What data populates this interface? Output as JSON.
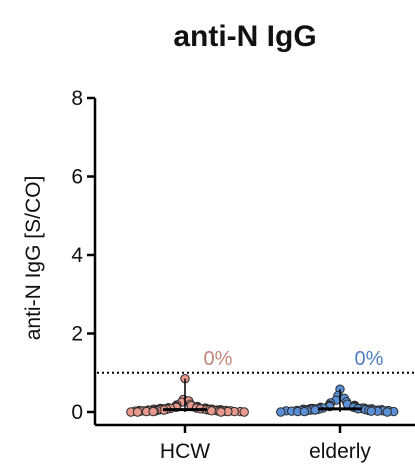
{
  "chart_data": {
    "type": "scatter",
    "title": "anti-N IgG",
    "xlabel": "",
    "ylabel": "anti-N IgG [S/CO]",
    "ylim": [
      0,
      8
    ],
    "yticks": [
      "0",
      "2",
      "4",
      "6",
      "8"
    ],
    "categories": [
      "HCW",
      "elderly"
    ],
    "threshold": 1,
    "grid": false,
    "colors": {
      "HCW": "#E8998D",
      "elderly": "#5B8FD6",
      "HCW_label": "#C58578",
      "elderly_label": "#4F7FC2"
    },
    "series": [
      {
        "name": "HCW",
        "positive_label": "0%",
        "values": [
          0.85,
          0.32,
          0.28,
          0.25,
          0.2,
          0.18,
          0.16,
          0.15,
          0.14,
          0.13,
          0.12,
          0.12,
          0.11,
          0.11,
          0.1,
          0.1,
          0.1,
          0.09,
          0.09,
          0.09,
          0.08,
          0.08,
          0.08,
          0.08,
          0.07,
          0.07,
          0.07,
          0.07,
          0.06,
          0.06,
          0.06,
          0.06,
          0.05,
          0.05,
          0.05,
          0.05,
          0.05,
          0.04,
          0.04,
          0.04,
          0.04,
          0.04,
          0.03,
          0.03,
          0.03,
          0.03,
          0.03,
          0.02,
          0.02,
          0.02,
          0.02,
          0.02,
          0.01,
          0.01,
          0.01,
          0.01,
          0.01,
          0.0,
          0.0,
          0.0,
          0.0
        ]
      },
      {
        "name": "elderly",
        "positive_label": "0%",
        "values": [
          0.58,
          0.42,
          0.35,
          0.3,
          0.26,
          0.23,
          0.2,
          0.18,
          0.17,
          0.16,
          0.15,
          0.14,
          0.13,
          0.12,
          0.12,
          0.11,
          0.1,
          0.1,
          0.1,
          0.09,
          0.09,
          0.09,
          0.08,
          0.08,
          0.08,
          0.07,
          0.07,
          0.07,
          0.06,
          0.06,
          0.06,
          0.05,
          0.05,
          0.05,
          0.05,
          0.04,
          0.04,
          0.04,
          0.04,
          0.03,
          0.03,
          0.03,
          0.02,
          0.02,
          0.02,
          0.01,
          0.01,
          0.01,
          0.0,
          0.0
        ]
      }
    ]
  }
}
